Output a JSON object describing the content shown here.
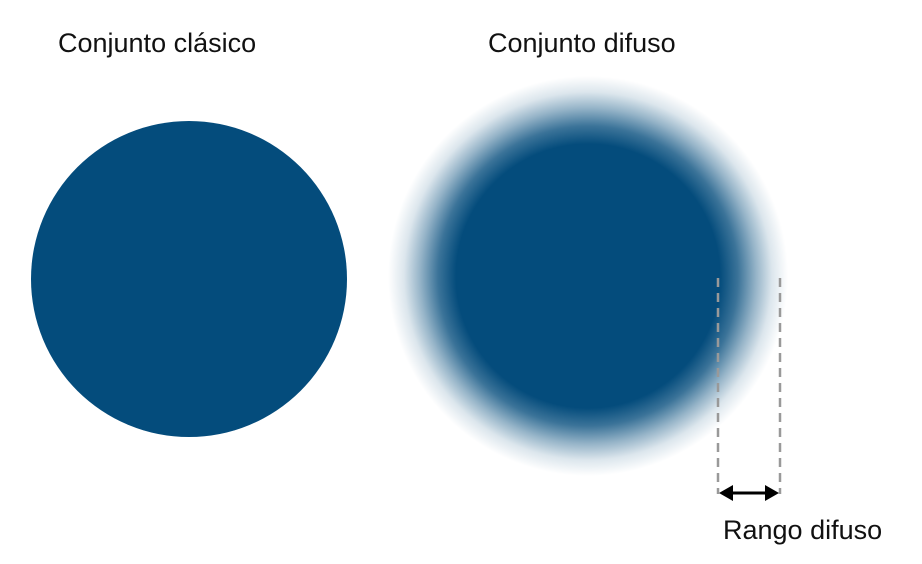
{
  "diagram": {
    "classic_set": {
      "title": "Conjunto clásico"
    },
    "fuzzy_set": {
      "title": "Conjunto difuso"
    },
    "fuzzy_range": {
      "label": "Rango difuso"
    },
    "colors": {
      "set_fill": "#044c7c",
      "guide_line": "#999999",
      "arrow": "#000000",
      "text": "#111111"
    }
  }
}
